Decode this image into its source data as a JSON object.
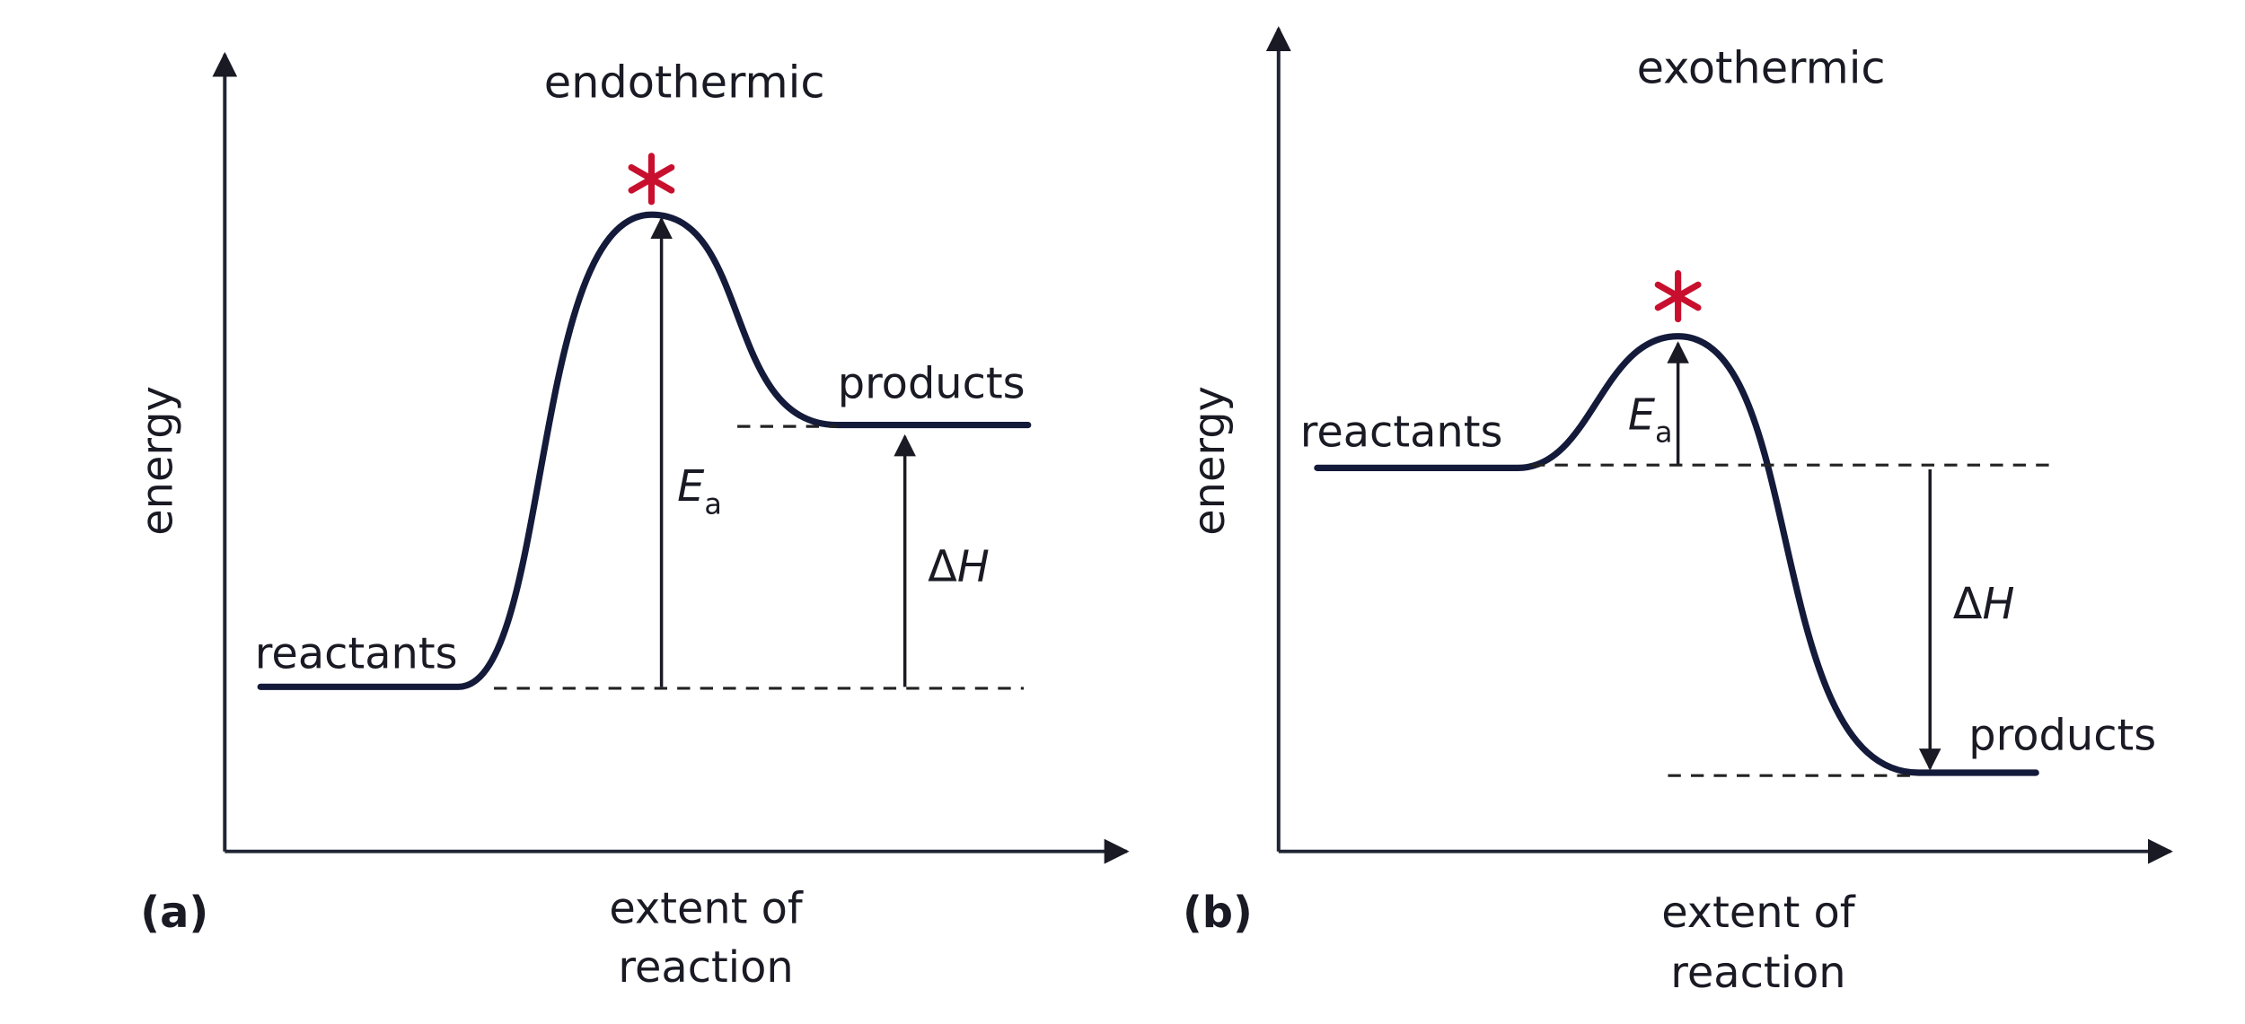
{
  "panels": [
    {
      "panel_label": "(a)",
      "title": "endothermic",
      "y_label": "energy",
      "x_label": [
        "extent of",
        "reaction"
      ],
      "reactants": "reactants",
      "products": "products",
      "ea_label": {
        "symbol": "E",
        "subscript": "a"
      },
      "dh_label": {
        "prefix": "Δ",
        "symbol": "H"
      }
    },
    {
      "panel_label": "(b)",
      "title": "exothermic",
      "y_label": "energy",
      "x_label": [
        "extent of",
        "reaction"
      ],
      "reactants": "reactants",
      "products": "products",
      "ea_label": {
        "symbol": "E",
        "subscript": "a"
      },
      "dh_label": {
        "prefix": "Δ",
        "symbol": "H"
      }
    }
  ]
}
